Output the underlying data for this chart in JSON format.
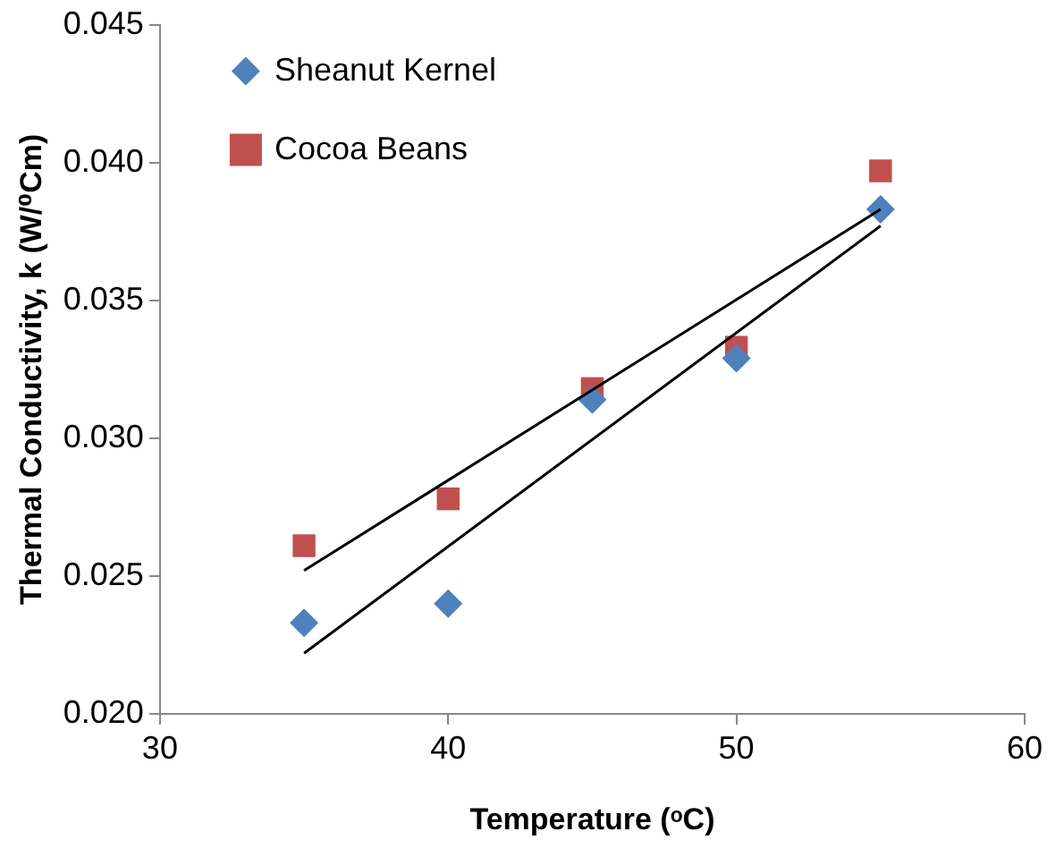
{
  "chart_data": {
    "type": "scatter",
    "xlabel": "Temperature (ᵒC)",
    "ylabel": "Thermal Conductivity, k (W/⁰Cm)",
    "xlim": [
      30,
      60
    ],
    "xticks": [
      30,
      40,
      50,
      60
    ],
    "ylim": [
      0.02,
      0.045
    ],
    "yticks": [
      {
        "value": 0.02,
        "label": "0.020"
      },
      {
        "value": 0.025,
        "label": "0.025"
      },
      {
        "value": 0.03,
        "label": "0.030"
      },
      {
        "value": 0.035,
        "label": "0.035"
      },
      {
        "value": 0.04,
        "label": "0.040"
      },
      {
        "value": 0.045,
        "label": "0.045"
      }
    ],
    "grid": false,
    "legend": "top left",
    "series": [
      {
        "name": "Sheanut Kernel",
        "color": "#4f81bd",
        "marker": "diamond",
        "x": [
          35,
          40,
          45,
          50,
          55
        ],
        "values": [
          0.0233,
          0.024,
          0.0314,
          0.0329,
          0.0383
        ]
      },
      {
        "name": "Cocoa Beans",
        "color": "#c0504d",
        "marker": "square",
        "x": [
          35,
          40,
          45,
          50,
          55
        ],
        "values": [
          0.0261,
          0.0278,
          0.0318,
          0.0333,
          0.0397
        ]
      },
      {
        "type": "line",
        "color": "#000000",
        "marker": "none",
        "x": [
          35,
          55
        ],
        "values": [
          0.0252,
          0.0383
        ]
      },
      {
        "type": "line",
        "color": "#000000",
        "marker": "none",
        "x": [
          35,
          55
        ],
        "values": [
          0.0222,
          0.0377
        ]
      }
    ]
  }
}
